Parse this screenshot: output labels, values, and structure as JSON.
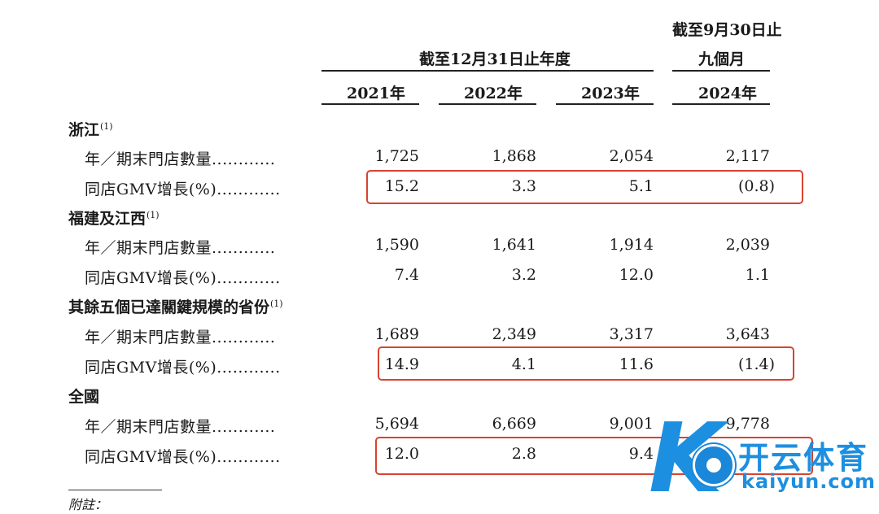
{
  "header": {
    "period_group": "截至12月31日止年度",
    "nine_month_line1": "截至9月30日止",
    "nine_month_line2": "九個月",
    "years": [
      "2021年",
      "2022年",
      "2023年",
      "2024年"
    ]
  },
  "sections": [
    {
      "title": "浙江",
      "note": "(1)",
      "rows": [
        {
          "label": "年／期末門店數量............",
          "values": [
            "1,725",
            "1,868",
            "2,054",
            "2,117"
          ]
        },
        {
          "label": "同店GMV增長(%)............",
          "values": [
            "15.2",
            "3.3",
            "5.1",
            "(0.8)"
          ]
        }
      ]
    },
    {
      "title": "福建及江西",
      "note": "(1)",
      "rows": [
        {
          "label": "年／期末門店數量............",
          "values": [
            "1,590",
            "1,641",
            "1,914",
            "2,039"
          ]
        },
        {
          "label": "同店GMV增長(%)............",
          "values": [
            "7.4",
            "3.2",
            "12.0",
            "1.1"
          ]
        }
      ]
    },
    {
      "title": "其餘五個已達關鍵規模的省份",
      "note": "(1)",
      "rows": [
        {
          "label": "年／期末門店數量............",
          "values": [
            "1,689",
            "2,349",
            "3,317",
            "3,643"
          ]
        },
        {
          "label": "同店GMV增長(%)............",
          "values": [
            "14.9",
            "4.1",
            "11.6",
            "(1.4)"
          ]
        }
      ]
    },
    {
      "title": "全國",
      "note": "",
      "rows": [
        {
          "label": "年／期末門店數量............",
          "values": [
            "5,694",
            "6,669",
            "9,001",
            "9,778"
          ]
        },
        {
          "label": "同店GMV增長(%)............",
          "values": [
            "12.0",
            "2.8",
            "9.4",
            ""
          ]
        }
      ]
    }
  ],
  "footnote": "附註：",
  "watermark": {
    "brand_cn": "开云体育",
    "brand_en": "kaiyun.com",
    "letter": "K",
    "color": "#1d8fe0"
  },
  "highlight_color": "#d8432f"
}
